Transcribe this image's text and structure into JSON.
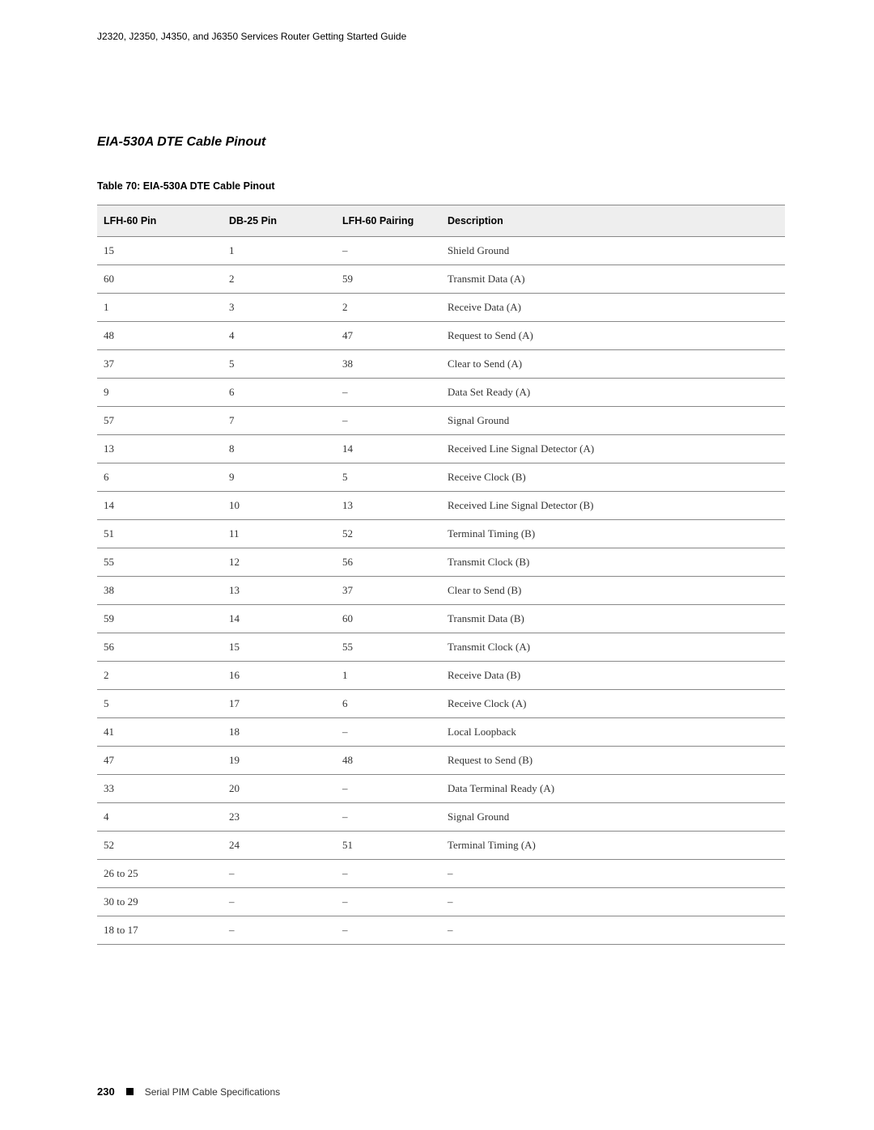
{
  "header": {
    "running_head": "J2320, J2350, J4350, and J6350 Services Router Getting Started Guide"
  },
  "section": {
    "title": "EIA-530A DTE Cable Pinout",
    "title_fontsize": 16,
    "title_font_weight": "bold",
    "title_font_style": "italic"
  },
  "table": {
    "caption": "Table 70: EIA-530A DTE Cable Pinout",
    "columns": [
      "LFH-60 Pin",
      "DB-25 Pin",
      "LFH-60 Pairing",
      "Description"
    ],
    "header_bg": "#eeeeee",
    "border_color": "#888888",
    "header_fontsize": 12.5,
    "cell_fontsize": 13,
    "rows": [
      [
        "15",
        "1",
        "–",
        "Shield Ground"
      ],
      [
        "60",
        "2",
        "59",
        "Transmit Data (A)"
      ],
      [
        "1",
        "3",
        "2",
        "Receive Data (A)"
      ],
      [
        "48",
        "4",
        "47",
        "Request to Send (A)"
      ],
      [
        "37",
        "5",
        "38",
        "Clear to Send (A)"
      ],
      [
        "9",
        "6",
        "–",
        "Data Set Ready (A)"
      ],
      [
        "57",
        "7",
        "–",
        "Signal Ground"
      ],
      [
        "13",
        "8",
        "14",
        "Received Line Signal Detector (A)"
      ],
      [
        "6",
        "9",
        "5",
        "Receive Clock (B)"
      ],
      [
        "14",
        "10",
        "13",
        "Received Line Signal Detector (B)"
      ],
      [
        "51",
        "11",
        "52",
        "Terminal Timing (B)"
      ],
      [
        "55",
        "12",
        "56",
        "Transmit Clock (B)"
      ],
      [
        "38",
        "13",
        "37",
        "Clear to Send (B)"
      ],
      [
        "59",
        "14",
        "60",
        "Transmit Data (B)"
      ],
      [
        "56",
        "15",
        "55",
        "Transmit Clock (A)"
      ],
      [
        "2",
        "16",
        "1",
        "Receive Data (B)"
      ],
      [
        "5",
        "17",
        "6",
        "Receive Clock (A)"
      ],
      [
        "41",
        "18",
        "–",
        "Local Loopback"
      ],
      [
        "47",
        "19",
        "48",
        "Request to Send (B)"
      ],
      [
        "33",
        "20",
        "–",
        "Data Terminal Ready (A)"
      ],
      [
        "4",
        "23",
        "–",
        "Signal Ground"
      ],
      [
        "52",
        "24",
        "51",
        "Terminal Timing (A)"
      ],
      [
        "26 to 25",
        "–",
        "–",
        "–"
      ],
      [
        "30 to 29",
        "–",
        "–",
        "–"
      ],
      [
        "18 to 17",
        "–",
        "–",
        "–"
      ]
    ]
  },
  "footer": {
    "page_number": "230",
    "section_label": "Serial PIM Cable Specifications"
  },
  "colors": {
    "background": "#ffffff",
    "text": "#000000",
    "body_text": "#333333"
  }
}
